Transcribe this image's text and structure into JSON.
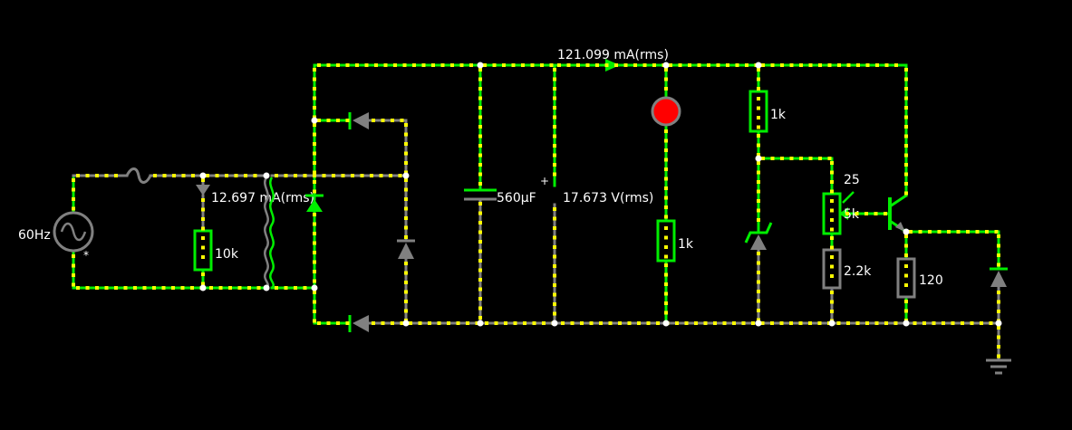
{
  "colors": {
    "background": "#000000",
    "live_wire": "#00ee00",
    "dead_wire": "#808080",
    "current_dot": "#ffff00",
    "node": "#ffffff",
    "led_on": "#ff0000",
    "text": "#ffffff"
  },
  "labels": {
    "source_freq": "60Hz",
    "source_marker": "*",
    "bleeder_resistor": "10k",
    "primary_current": "12.697 mA(rms)",
    "capacitor_value": "560µF",
    "plus_sign": "+",
    "output_voltage": "17.673 V(rms)",
    "rail_current": "121.099 mA(rms)",
    "led_resistor": "1k",
    "zener_resistor": "1k",
    "pot_value": "25",
    "pot_resistance": "5k",
    "lower_resistor": "2.2k",
    "emitter_resistor": "120"
  },
  "icons": {
    "source": "ac-source-icon",
    "fuse": "fuse-icon",
    "transformer": "transformer-icon",
    "diode": "diode-icon",
    "zener": "zener-diode-icon",
    "capacitor": "capacitor-icon",
    "led": "led-icon",
    "transistor": "npn-transistor-icon",
    "ground": "ground-icon"
  }
}
